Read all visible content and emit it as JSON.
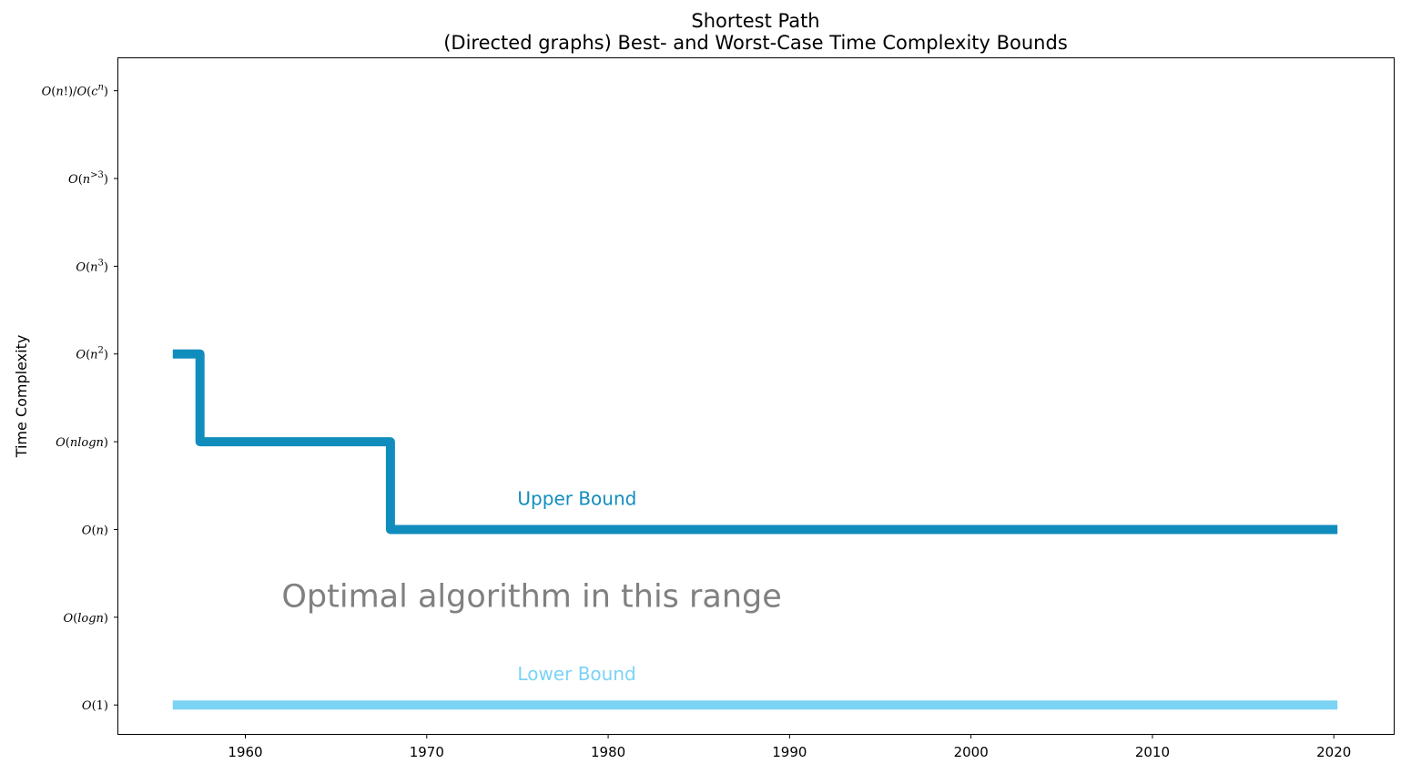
{
  "chart_data": {
    "type": "line",
    "title": "Shortest Path",
    "subtitle": "(Directed graphs) Best- and Worst-Case Time Complexity Bounds",
    "xlabel": "",
    "ylabel": "Time Complexity",
    "xlim": [
      1953,
      2023.3
    ],
    "x_ticks": [
      1960,
      1970,
      1980,
      1990,
      2000,
      2010,
      2020
    ],
    "y_ticks": [
      {
        "level": 0,
        "label": "O(1)"
      },
      {
        "level": 1,
        "label": "O(logn)"
      },
      {
        "level": 2,
        "label": "O(n)"
      },
      {
        "level": 3,
        "label": "O(nlogn)"
      },
      {
        "level": 4,
        "label": "O(n^2)"
      },
      {
        "level": 5,
        "label": "O(n^3)"
      },
      {
        "level": 6,
        "label": "O(n^>3)"
      },
      {
        "level": 7,
        "label": "O(n!)/O(c^n)"
      }
    ],
    "ylim": [
      -0.33,
      7.37
    ],
    "grid": false,
    "series": [
      {
        "name": "Upper Bound",
        "color": "#118dbd",
        "step": "post",
        "x": [
          1956,
          1957.5,
          1968,
          2020.2
        ],
        "y": [
          4,
          3,
          2,
          2
        ],
        "label_position": {
          "x": 1975,
          "y": 2.28
        }
      },
      {
        "name": "Lower Bound",
        "color": "#7bd3f5",
        "step": "post",
        "x": [
          1956,
          2020.2
        ],
        "y": [
          0,
          0
        ],
        "label_position": {
          "x": 1975,
          "y": 0.28
        }
      }
    ],
    "annotations": [
      {
        "text": "Optimal algorithm in this range",
        "x": 1962,
        "y": 1.12,
        "color": "#808080"
      }
    ]
  }
}
